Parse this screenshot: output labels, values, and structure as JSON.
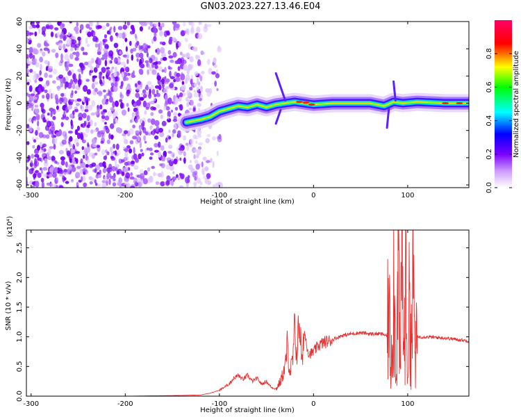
{
  "title": "GN03.2023.227.13.46.E04",
  "chart_data": [
    {
      "type": "heatmap",
      "xlabel": "Height of straight line (km)",
      "ylabel": "Frequency (Hz)",
      "xlim": [
        -305,
        165
      ],
      "ylim": [
        -62,
        60
      ],
      "xticks": [
        -300,
        -200,
        -100,
        0,
        100
      ],
      "yticks": [
        -60,
        -40,
        -20,
        0,
        20,
        40,
        60
      ],
      "colorbar": {
        "label": "Normalized spectral amplitude",
        "range": [
          0,
          1
        ],
        "ticks": [
          0.0,
          0.2,
          0.4,
          0.6,
          0.8
        ],
        "colormap": [
          "#ffffff",
          "#7a00ff",
          "#0000ff",
          "#00ffff",
          "#00ff00",
          "#ffff00",
          "#ff0000",
          "#ff0066"
        ]
      },
      "ridge": {
        "x": [
          -135,
          -120,
          -110,
          -100,
          -90,
          -80,
          -70,
          -60,
          -50,
          -40,
          -30,
          -20,
          -10,
          0,
          20,
          40,
          60,
          75,
          85,
          95,
          110,
          140,
          165
        ],
        "y": [
          -14,
          -12,
          -10,
          -6,
          -4,
          -2,
          -3,
          -1,
          -3,
          -1,
          0,
          1,
          0,
          -1,
          0,
          0,
          0,
          -2,
          1,
          0,
          1,
          0,
          0
        ]
      },
      "noise_region_x": [
        -305,
        -120
      ]
    },
    {
      "type": "line",
      "series_color": "#e83030",
      "xlabel": "Height of straight line (km)",
      "ylabel": "SNR (10 * v/v)",
      "y_multiplier_label": "(x10⁴)",
      "xlim": [
        -305,
        165
      ],
      "ylim": [
        0,
        2.8
      ],
      "xticks": [
        -300,
        -200,
        -100,
        0,
        100
      ],
      "yticks": [
        0.0,
        0.5,
        1.0,
        1.5,
        2.0,
        2.5
      ],
      "x": [
        -305,
        -250,
        -200,
        -150,
        -120,
        -110,
        -100,
        -90,
        -85,
        -80,
        -75,
        -70,
        -65,
        -60,
        -55,
        -50,
        -45,
        -40,
        -35,
        -30,
        -28,
        -25,
        -22,
        -20,
        -18,
        -15,
        -12,
        -10,
        -5,
        0,
        5,
        10,
        20,
        30,
        40,
        50,
        60,
        70,
        75,
        78,
        80,
        82,
        85,
        88,
        90,
        92,
        94,
        96,
        98,
        100,
        102,
        104,
        106,
        108,
        110,
        120,
        140,
        165
      ],
      "values": [
        0.0,
        0.0,
        0.0,
        0.01,
        0.02,
        0.05,
        0.1,
        0.2,
        0.3,
        0.35,
        0.28,
        0.35,
        0.25,
        0.3,
        0.2,
        0.25,
        0.15,
        0.12,
        0.25,
        0.5,
        0.85,
        0.4,
        0.6,
        1.15,
        0.7,
        1.3,
        0.5,
        1.1,
        0.7,
        0.75,
        0.85,
        0.9,
        0.95,
        1.02,
        1.05,
        1.07,
        1.05,
        1.05,
        1.04,
        1.0,
        1.6,
        0.4,
        2.0,
        0.3,
        2.6,
        0.1,
        2.8,
        0.5,
        2.0,
        0.3,
        1.7,
        0.9,
        2.0,
        0.6,
        1.0,
        1.0,
        0.98,
        0.93
      ]
    }
  ]
}
